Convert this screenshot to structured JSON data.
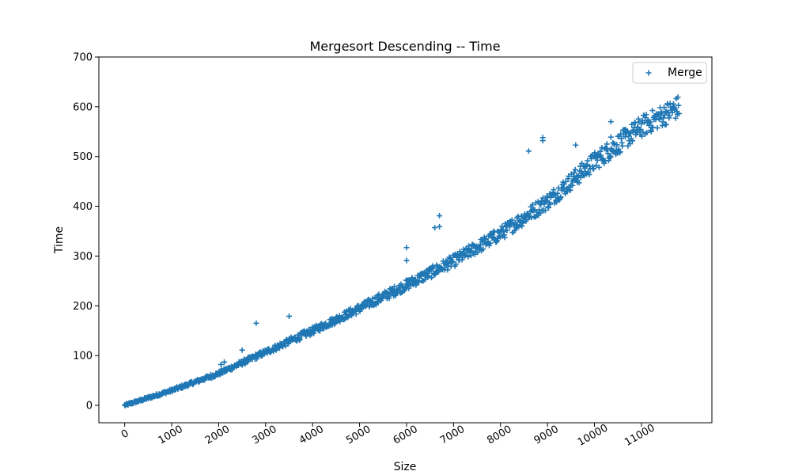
{
  "chart_data": {
    "type": "scatter",
    "title": "Mergesort Descending -- Time",
    "xlabel": "Size",
    "ylabel": "Time",
    "xlim": [
      -550,
      12500
    ],
    "ylim": [
      -35,
      700
    ],
    "xticks": [
      0,
      1000,
      2000,
      3000,
      4000,
      5000,
      6000,
      7000,
      8000,
      9000,
      10000,
      11000
    ],
    "yticks": [
      0,
      100,
      200,
      300,
      400,
      500,
      600,
      700
    ],
    "xtick_rotation": -30,
    "legend": {
      "location": "top-right",
      "entries": [
        "Merge"
      ]
    },
    "marker": "+",
    "color": "#1f77b4",
    "series": [
      {
        "name": "Merge",
        "trend": {
          "x": [
            0,
            1000,
            2000,
            3000,
            4000,
            5000,
            6000,
            7000,
            8000,
            9000,
            10000,
            11000,
            11800
          ],
          "y": [
            0,
            30,
            64,
            107,
            150,
            195,
            242,
            290,
            345,
            410,
            490,
            560,
            600
          ]
        },
        "x_range": [
          0,
          11800
        ],
        "n_points": 1000,
        "outliers": [
          {
            "x": 2050,
            "y": 82
          },
          {
            "x": 2120,
            "y": 87
          },
          {
            "x": 2500,
            "y": 111
          },
          {
            "x": 2800,
            "y": 165
          },
          {
            "x": 3500,
            "y": 179
          },
          {
            "x": 3800,
            "y": 148
          },
          {
            "x": 6000,
            "y": 317
          },
          {
            "x": 6000,
            "y": 291
          },
          {
            "x": 6600,
            "y": 357
          },
          {
            "x": 6700,
            "y": 359
          },
          {
            "x": 6700,
            "y": 381
          },
          {
            "x": 8600,
            "y": 511
          },
          {
            "x": 8900,
            "y": 532
          },
          {
            "x": 8900,
            "y": 538
          },
          {
            "x": 9600,
            "y": 523
          },
          {
            "x": 10350,
            "y": 570
          },
          {
            "x": 10350,
            "y": 539
          }
        ]
      }
    ]
  }
}
